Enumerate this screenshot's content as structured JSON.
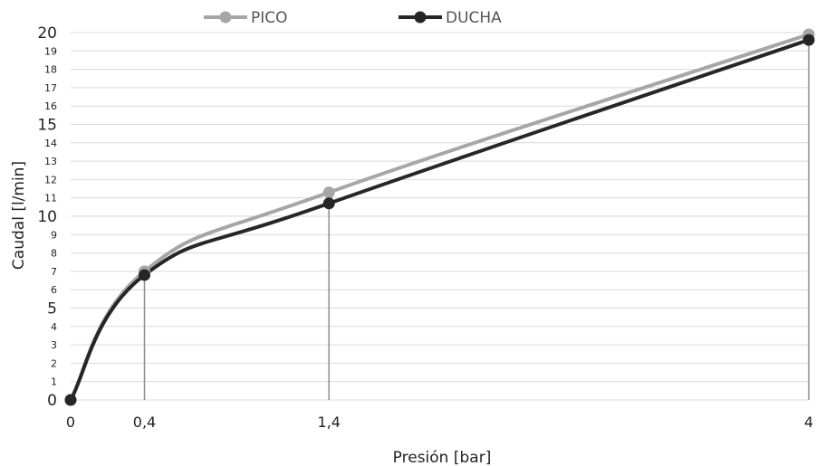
{
  "chart_data": {
    "type": "line",
    "title": "",
    "xlabel": "Presión [bar]",
    "ylabel": "Caudal [l/min]",
    "x": [
      0,
      0.4,
      1.4,
      4
    ],
    "x_tick_labels": [
      "0",
      "0,4",
      "1,4",
      "4"
    ],
    "y_ticks": [
      0,
      1,
      2,
      3,
      4,
      5,
      6,
      7,
      8,
      9,
      10,
      11,
      12,
      13,
      14,
      15,
      16,
      17,
      18,
      19,
      20
    ],
    "y_major_ticks": [
      0,
      5,
      10,
      15,
      20
    ],
    "ylim": [
      0,
      20
    ],
    "xlim": [
      0,
      4
    ],
    "grid": true,
    "legend_position": "top",
    "series": [
      {
        "name": "PICO",
        "color": "#a6a6a6",
        "values": [
          0,
          7.0,
          11.3,
          19.9
        ]
      },
      {
        "name": "DUCHA",
        "color": "#262626",
        "values": [
          0,
          6.8,
          10.7,
          19.6
        ]
      }
    ]
  }
}
